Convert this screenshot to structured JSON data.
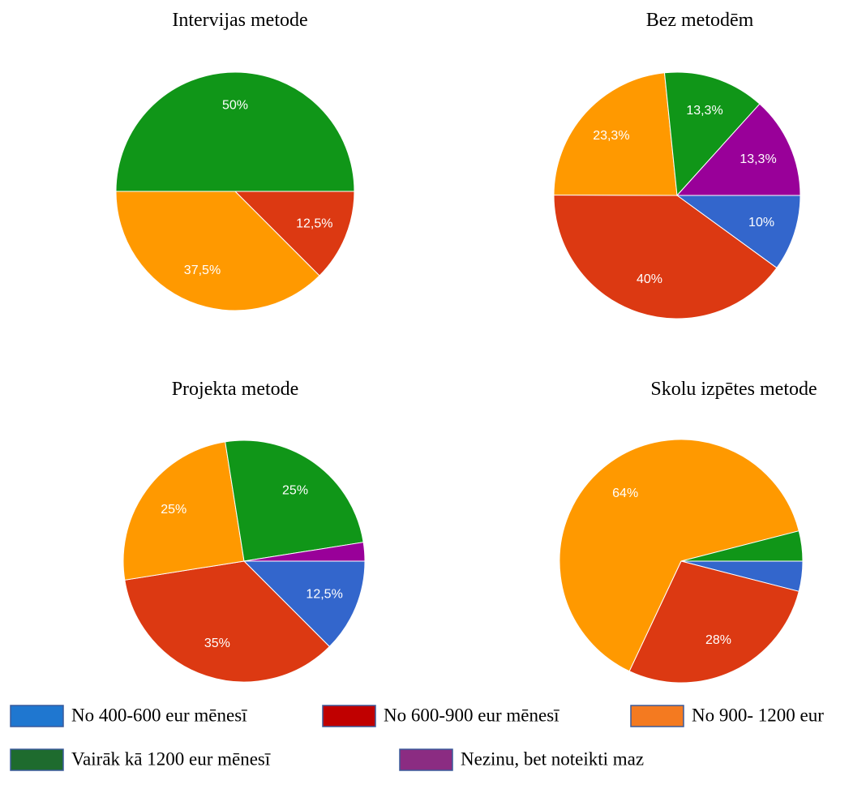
{
  "chart_data": [
    {
      "type": "pie",
      "title": "Intervijas metode",
      "values": [
        null,
        12.5,
        37.5,
        50,
        null
      ],
      "value_labels": [
        null,
        "12,5%",
        "37,5%",
        "50%",
        null
      ],
      "colors": [
        "#3366cc",
        "#dc3912",
        "#ff9900",
        "#109618",
        "#990099"
      ]
    },
    {
      "type": "pie",
      "title": "Bez metodēm",
      "values": [
        10,
        40,
        23.3,
        13.3,
        13.3
      ],
      "value_labels": [
        "10%",
        "40%",
        "23,3%",
        "13,3%",
        "13,3%"
      ],
      "colors": [
        "#3366cc",
        "#dc3912",
        "#ff9900",
        "#109618",
        "#990099"
      ]
    },
    {
      "type": "pie",
      "title": "Projekta metode",
      "values": [
        12.5,
        35,
        25,
        25,
        2.5
      ],
      "value_labels": [
        "12,5%",
        "35%",
        "25%",
        "25%",
        null
      ],
      "colors": [
        "#3366cc",
        "#dc3912",
        "#ff9900",
        "#109618",
        "#990099"
      ]
    },
    {
      "type": "pie",
      "title": "Skolu izpētes metode",
      "values": [
        4,
        28,
        64,
        4,
        null
      ],
      "value_labels": [
        null,
        "28%",
        "64%",
        null,
        null
      ],
      "colors": [
        "#3366cc",
        "#dc3912",
        "#ff9900",
        "#109618",
        "#990099"
      ]
    }
  ],
  "legend": {
    "labels": [
      "No 400-600 eur mēnesī",
      "No 600-900 eur mēnesī",
      "No 900- 1200 eur",
      "Vairāk kā 1200 eur mēnesī",
      "Nezinu, bet noteikti maz"
    ],
    "colors": [
      "#1f77d0",
      "#c00000",
      "#f47a20",
      "#1e6b2e",
      "#8b2c82"
    ]
  }
}
